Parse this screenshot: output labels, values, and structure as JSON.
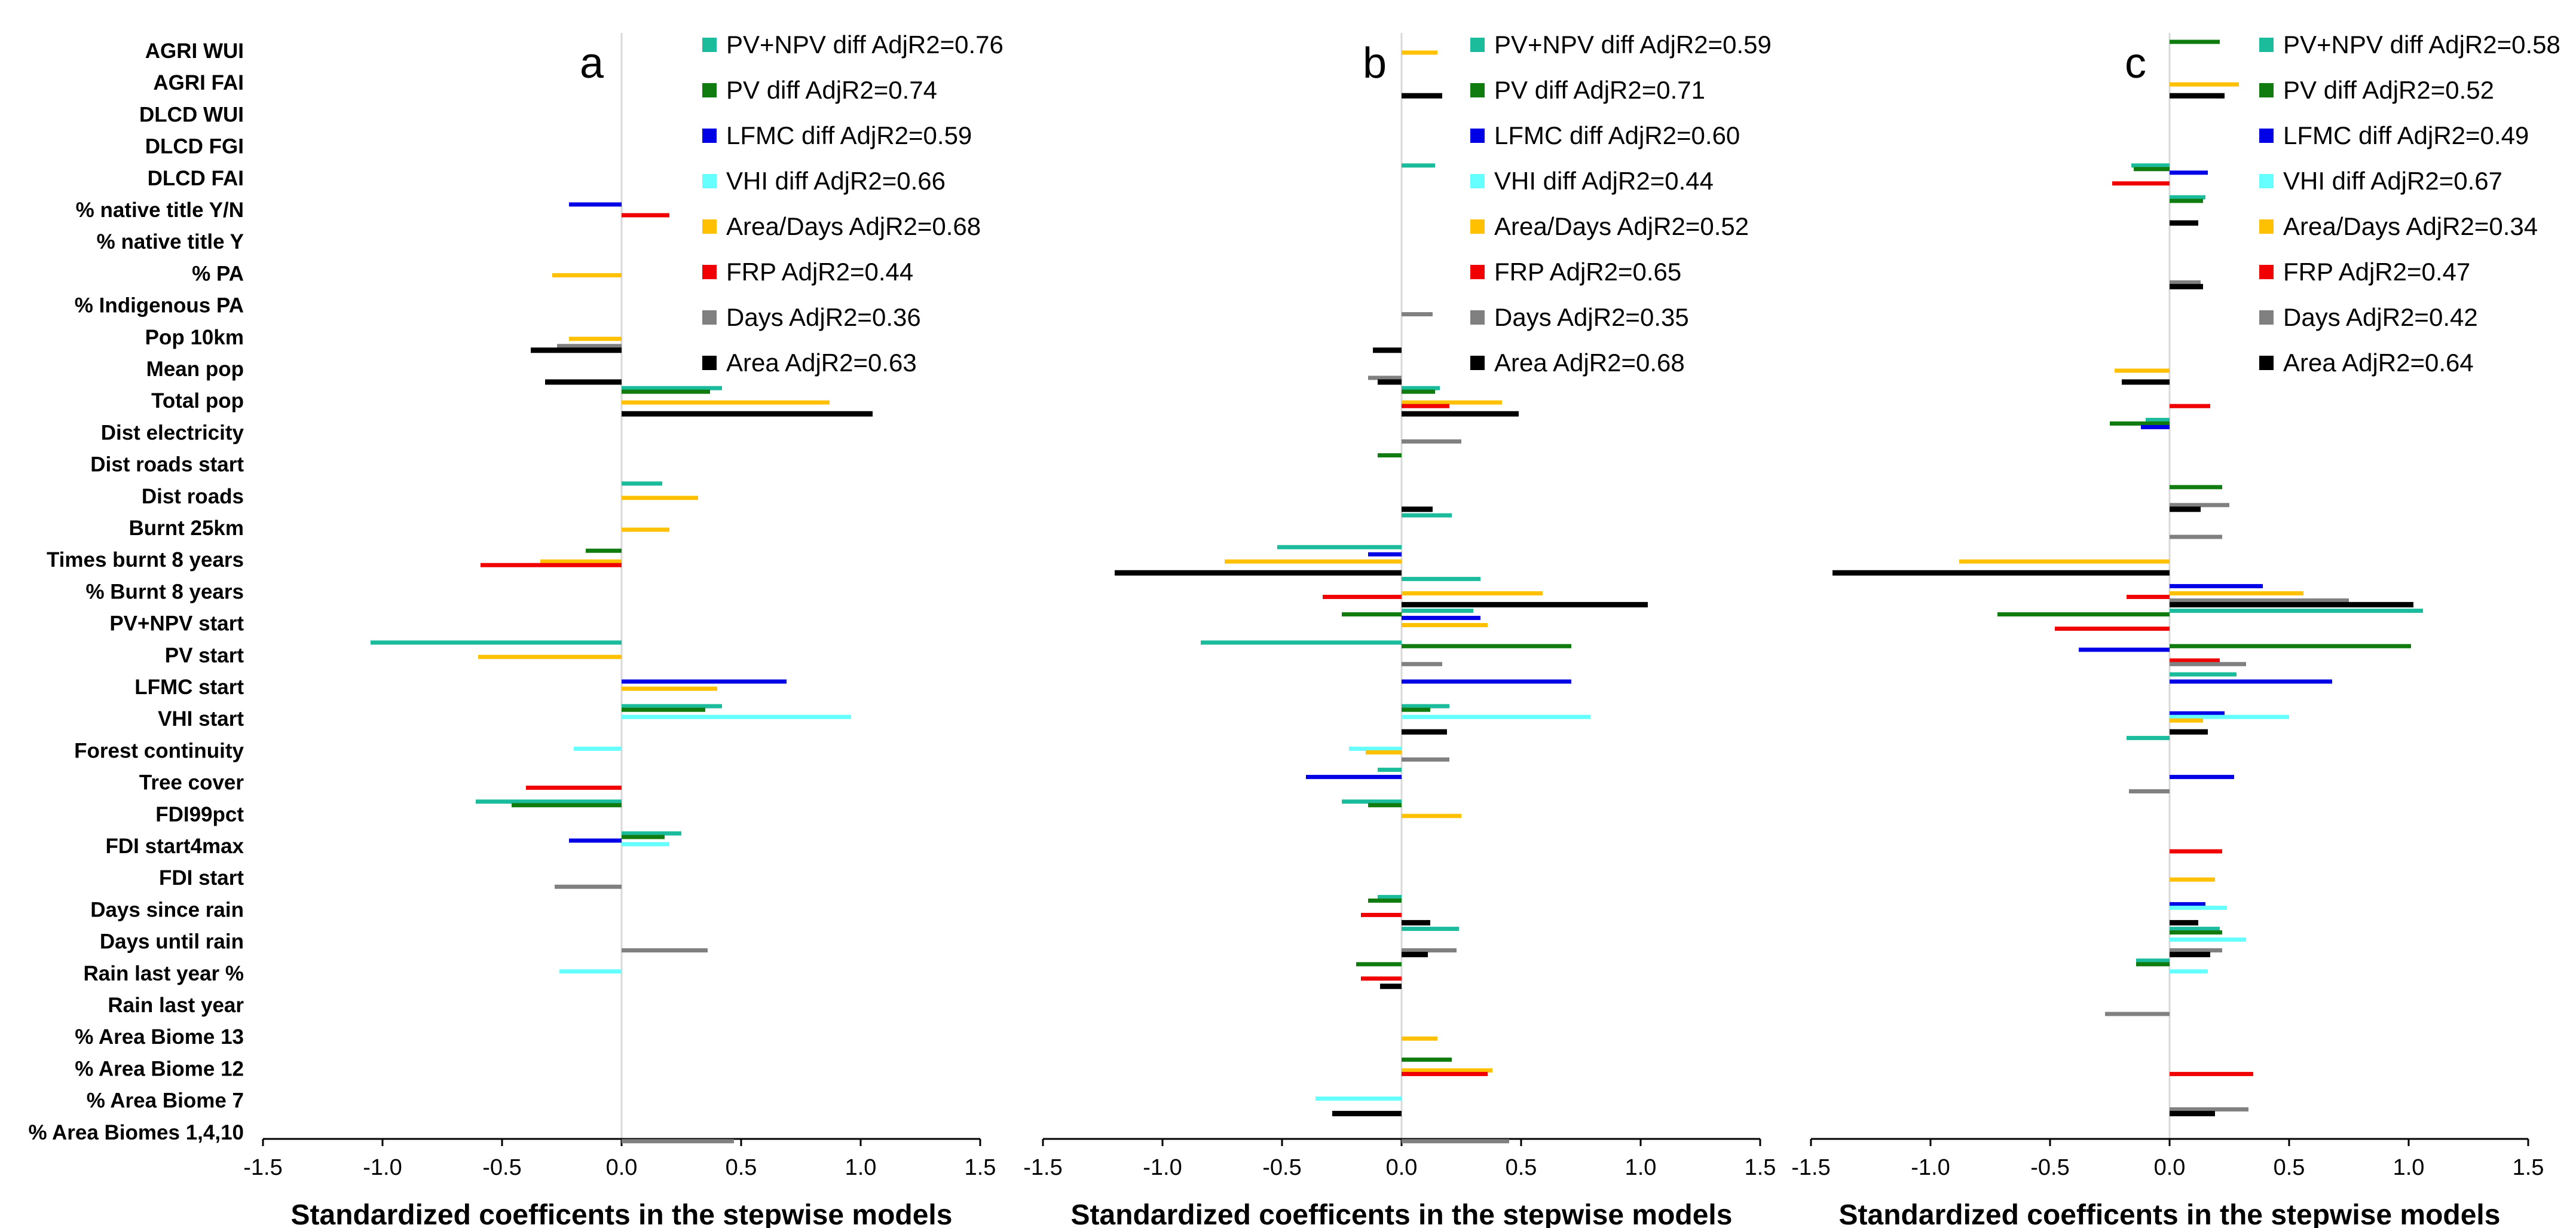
{
  "chart_data": {
    "type": "bar",
    "orientation": "horizontal",
    "xlabel": "Standardized  coefficents in the stepwise models",
    "xlim": [
      -1.5,
      1.5
    ],
    "xticks": [
      -1.5,
      -1.0,
      -0.5,
      0.0,
      0.5,
      1.0,
      1.5
    ],
    "xtick_labels": [
      "-1.5",
      "-1.0",
      "-0.5",
      "0.0",
      "0.5",
      "1.0",
      "1.5"
    ],
    "categories": [
      "AGRI WUI",
      "AGRI FAI",
      "DLCD WUI",
      "DLCD FGI",
      "DLCD FAI",
      "% native title Y/N",
      "% native title Y",
      "% PA",
      "% Indigenous PA",
      "Pop 10km",
      "Mean pop",
      "Total pop",
      "Dist electricity",
      "Dist roads start",
      "Dist roads",
      "Burnt 25km",
      "Times burnt 8 years",
      "% Burnt 8 years",
      "PV+NPV start",
      "PV start",
      "LFMC start",
      "VHI start",
      "Forest continuity",
      "Tree cover",
      "FDI99pct",
      "FDI start4max",
      "FDI start",
      "Days since rain",
      "Days until rain",
      "Rain last year %",
      "Rain last year",
      "% Area Biome 13",
      "% Area Biome 12",
      "% Area Biome 7",
      "% Area Biomes 1,4,10"
    ],
    "series_styles": [
      {
        "key": "pvnpv",
        "color": "#1ABC9C"
      },
      {
        "key": "pv",
        "color": "#107C10"
      },
      {
        "key": "lfmc",
        "color": "#0000E6"
      },
      {
        "key": "vhi",
        "color": "#66FFFF"
      },
      {
        "key": "areadays",
        "color": "#FFC000"
      },
      {
        "key": "frp",
        "color": "#F00000"
      },
      {
        "key": "days",
        "color": "#808080"
      },
      {
        "key": "area",
        "color": "#000000"
      }
    ],
    "panels": [
      {
        "label": "a",
        "legend": [
          "PV+NPV diff AdjR2=0.76",
          "PV diff AdjR2=0.74",
          "LFMC diff AdjR2=0.59",
          "VHI diff AdjR2=0.66",
          "Area/Days AdjR2=0.68",
          "FRP AdjR2=0.44",
          "Days AdjR2=0.36",
          "Area AdjR2=0.63"
        ],
        "series": {
          "pvnpv": [
            null,
            null,
            null,
            null,
            null,
            null,
            null,
            null,
            null,
            null,
            null,
            0.42,
            null,
            null,
            0.17,
            null,
            null,
            null,
            null,
            -1.05,
            null,
            0.42,
            null,
            null,
            -0.61,
            0.25,
            null,
            null,
            null,
            null,
            null,
            null,
            null,
            null,
            null
          ],
          "pv": [
            null,
            null,
            null,
            null,
            null,
            null,
            null,
            null,
            null,
            null,
            null,
            0.37,
            null,
            null,
            null,
            null,
            -0.15,
            null,
            null,
            null,
            null,
            0.35,
            null,
            null,
            -0.46,
            0.18,
            null,
            null,
            null,
            null,
            null,
            null,
            null,
            null,
            null
          ],
          "lfmc": [
            null,
            null,
            null,
            null,
            null,
            -0.22,
            null,
            null,
            null,
            null,
            null,
            null,
            null,
            null,
            null,
            null,
            null,
            null,
            null,
            null,
            0.69,
            null,
            null,
            null,
            null,
            -0.22,
            null,
            null,
            null,
            null,
            null,
            null,
            null,
            null,
            null
          ],
          "vhi": [
            null,
            null,
            null,
            null,
            null,
            null,
            null,
            null,
            null,
            null,
            null,
            null,
            null,
            null,
            null,
            null,
            null,
            null,
            null,
            null,
            null,
            0.96,
            -0.2,
            null,
            null,
            0.2,
            null,
            null,
            null,
            -0.26,
            null,
            null,
            null,
            null,
            null
          ],
          "areadays": [
            null,
            null,
            null,
            null,
            null,
            null,
            null,
            -0.29,
            null,
            -0.22,
            null,
            0.87,
            null,
            null,
            0.32,
            0.2,
            -0.34,
            null,
            null,
            -0.6,
            0.4,
            null,
            null,
            null,
            null,
            null,
            null,
            null,
            null,
            null,
            null,
            null,
            null,
            null,
            null
          ],
          "frp": [
            null,
            null,
            null,
            null,
            null,
            0.2,
            null,
            null,
            null,
            null,
            null,
            null,
            null,
            null,
            null,
            null,
            -0.59,
            null,
            null,
            null,
            null,
            null,
            null,
            -0.4,
            null,
            null,
            null,
            null,
            null,
            null,
            null,
            null,
            null,
            null,
            null
          ],
          "days": [
            null,
            null,
            null,
            null,
            null,
            null,
            null,
            null,
            null,
            -0.27,
            null,
            null,
            null,
            null,
            null,
            null,
            null,
            null,
            null,
            null,
            null,
            null,
            null,
            null,
            null,
            null,
            -0.28,
            null,
            0.36,
            null,
            null,
            null,
            null,
            null,
            0.47
          ],
          "area": [
            null,
            null,
            null,
            null,
            null,
            null,
            null,
            null,
            null,
            -0.38,
            -0.32,
            1.05,
            null,
            null,
            null,
            null,
            null,
            null,
            null,
            null,
            null,
            null,
            null,
            null,
            null,
            null,
            null,
            null,
            null,
            null,
            null,
            null,
            null,
            null,
            null
          ]
        }
      },
      {
        "label": "b",
        "legend": [
          "PV+NPV diff AdjR2=0.59",
          "PV diff AdjR2=0.71",
          "LFMC diff AdjR2=0.60",
          "VHI diff AdjR2=0.44",
          "Area/Days AdjR2=0.52",
          "FRP AdjR2=0.65",
          "Days AdjR2=0.35",
          "Area AdjR2=0.68"
        ],
        "series": {
          "pvnpv": [
            null,
            null,
            null,
            null,
            0.14,
            null,
            null,
            null,
            null,
            null,
            null,
            0.16,
            null,
            null,
            null,
            0.21,
            -0.52,
            0.33,
            0.3,
            -0.84,
            null,
            0.2,
            null,
            -0.1,
            -0.25,
            null,
            null,
            -0.1,
            0.24,
            null,
            null,
            null,
            null,
            null,
            null
          ],
          "pv": [
            null,
            null,
            null,
            null,
            null,
            null,
            null,
            null,
            null,
            null,
            null,
            0.14,
            null,
            -0.1,
            null,
            null,
            null,
            null,
            -0.25,
            0.71,
            null,
            0.12,
            null,
            null,
            -0.14,
            null,
            null,
            -0.14,
            null,
            -0.19,
            null,
            null,
            0.21,
            null,
            null
          ],
          "lfmc": [
            null,
            null,
            null,
            null,
            null,
            null,
            null,
            null,
            null,
            null,
            null,
            null,
            null,
            null,
            null,
            null,
            -0.14,
            null,
            0.33,
            null,
            0.71,
            null,
            null,
            -0.4,
            null,
            null,
            null,
            null,
            null,
            null,
            null,
            null,
            null,
            null,
            null
          ],
          "vhi": [
            null,
            null,
            null,
            null,
            null,
            null,
            null,
            null,
            null,
            null,
            null,
            null,
            null,
            null,
            null,
            null,
            null,
            null,
            null,
            null,
            null,
            0.79,
            -0.22,
            null,
            null,
            null,
            null,
            null,
            null,
            null,
            null,
            null,
            null,
            -0.36,
            null
          ],
          "areadays": [
            0.15,
            null,
            null,
            null,
            null,
            null,
            null,
            null,
            null,
            null,
            null,
            0.42,
            null,
            null,
            null,
            null,
            -0.74,
            0.59,
            0.36,
            null,
            null,
            null,
            -0.15,
            null,
            0.25,
            null,
            null,
            null,
            null,
            null,
            null,
            0.15,
            0.38,
            null,
            null
          ],
          "frp": [
            null,
            null,
            null,
            null,
            null,
            null,
            null,
            null,
            null,
            null,
            null,
            0.2,
            null,
            null,
            null,
            null,
            null,
            -0.33,
            null,
            null,
            null,
            null,
            null,
            null,
            null,
            null,
            null,
            -0.17,
            null,
            -0.17,
            null,
            null,
            0.36,
            null,
            null
          ],
          "days": [
            null,
            null,
            null,
            null,
            null,
            null,
            null,
            null,
            0.13,
            null,
            -0.14,
            null,
            0.25,
            null,
            null,
            null,
            null,
            null,
            null,
            0.17,
            null,
            null,
            0.2,
            null,
            null,
            null,
            null,
            null,
            0.23,
            null,
            null,
            null,
            null,
            null,
            0.45
          ],
          "area": [
            null,
            0.17,
            null,
            null,
            null,
            null,
            null,
            null,
            null,
            -0.12,
            -0.1,
            0.49,
            null,
            null,
            0.13,
            null,
            -1.2,
            1.03,
            null,
            null,
            null,
            0.19,
            null,
            null,
            null,
            null,
            null,
            0.12,
            0.11,
            -0.09,
            null,
            null,
            null,
            -0.29,
            null
          ]
        }
      },
      {
        "label": "c",
        "legend": [
          "PV+NPV diff AdjR2=0.58",
          "PV diff AdjR2=0.52",
          "LFMC diff AdjR2=0.49",
          "VHI diff AdjR2=0.67",
          "Area/Days AdjR2=0.34",
          "FRP AdjR2=0.47",
          "Days AdjR2=0.42",
          "Area AdjR2=0.64"
        ],
        "series": {
          "pvnpv": [
            null,
            null,
            null,
            null,
            -0.16,
            0.15,
            null,
            null,
            null,
            null,
            null,
            null,
            -0.1,
            null,
            null,
            null,
            null,
            null,
            1.06,
            null,
            0.28,
            null,
            -0.18,
            null,
            null,
            null,
            null,
            null,
            0.21,
            -0.14,
            null,
            null,
            null,
            null,
            null
          ],
          "pv": [
            0.21,
            null,
            null,
            null,
            -0.15,
            0.14,
            null,
            null,
            null,
            null,
            null,
            null,
            -0.25,
            null,
            0.22,
            null,
            null,
            null,
            -0.72,
            1.01,
            null,
            null,
            null,
            null,
            null,
            null,
            null,
            null,
            0.22,
            -0.14,
            null,
            null,
            null,
            null,
            null
          ],
          "lfmc": [
            null,
            null,
            null,
            null,
            0.16,
            null,
            null,
            null,
            null,
            null,
            null,
            null,
            -0.12,
            null,
            null,
            null,
            null,
            0.39,
            null,
            -0.38,
            0.68,
            0.23,
            null,
            0.27,
            null,
            null,
            null,
            0.15,
            null,
            null,
            null,
            null,
            null,
            null,
            null
          ],
          "vhi": [
            null,
            null,
            null,
            null,
            null,
            null,
            null,
            null,
            null,
            null,
            null,
            null,
            null,
            null,
            null,
            null,
            null,
            null,
            null,
            null,
            null,
            0.5,
            null,
            null,
            null,
            null,
            null,
            0.24,
            0.32,
            0.16,
            null,
            null,
            null,
            null,
            null
          ],
          "areadays": [
            null,
            0.29,
            null,
            null,
            null,
            null,
            null,
            null,
            null,
            null,
            -0.23,
            null,
            null,
            null,
            null,
            null,
            -0.88,
            0.56,
            null,
            null,
            null,
            0.14,
            null,
            null,
            null,
            null,
            0.19,
            null,
            null,
            null,
            null,
            null,
            null,
            null,
            null
          ],
          "frp": [
            null,
            null,
            null,
            null,
            -0.24,
            null,
            null,
            null,
            null,
            null,
            null,
            0.17,
            null,
            null,
            null,
            null,
            null,
            -0.18,
            -0.48,
            0.21,
            null,
            null,
            null,
            null,
            null,
            0.22,
            null,
            null,
            null,
            null,
            null,
            null,
            0.35,
            null,
            null
          ],
          "days": [
            null,
            null,
            null,
            null,
            null,
            null,
            null,
            0.13,
            null,
            null,
            null,
            null,
            null,
            null,
            0.25,
            0.22,
            null,
            0.75,
            null,
            0.32,
            null,
            null,
            null,
            -0.17,
            null,
            null,
            null,
            null,
            0.22,
            null,
            -0.27,
            null,
            null,
            0.33,
            null
          ],
          "area": [
            null,
            0.23,
            null,
            null,
            null,
            0.12,
            null,
            0.14,
            null,
            null,
            -0.2,
            null,
            null,
            null,
            0.13,
            null,
            -1.41,
            1.02,
            null,
            null,
            null,
            0.16,
            null,
            null,
            null,
            null,
            null,
            0.12,
            0.17,
            null,
            null,
            null,
            null,
            0.19,
            null
          ]
        }
      }
    ]
  }
}
